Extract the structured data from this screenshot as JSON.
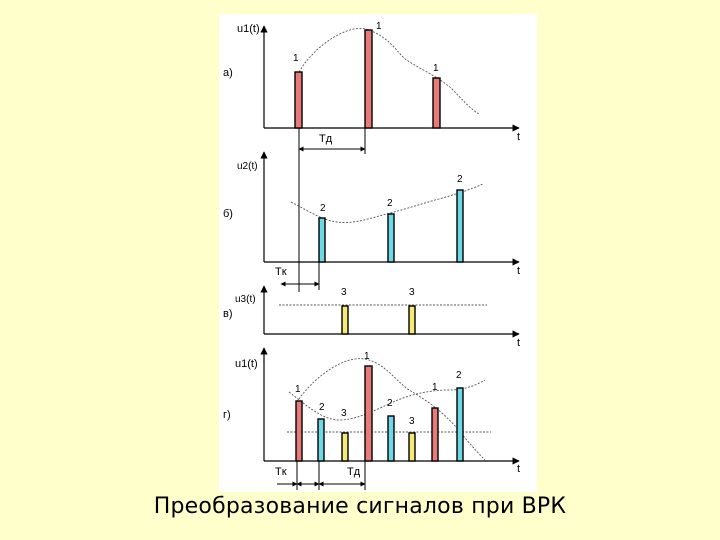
{
  "caption": "Преобразование сигналов при ВРК",
  "colors": {
    "background": "#ffffcc",
    "panel": "#ffffff",
    "pulse_red": "#e87a7a",
    "pulse_cyan": "#6fd8e6",
    "pulse_yellow": "#f5ea78"
  },
  "plots": [
    {
      "id": "a",
      "panel_label": "а)",
      "y_label": "u1(t)",
      "x_label": "t",
      "pulses": [
        {
          "channel": "red",
          "label": "1"
        },
        {
          "channel": "red",
          "label": "1"
        },
        {
          "channel": "red",
          "label": "1"
        }
      ],
      "interval_label": "Tд"
    },
    {
      "id": "b",
      "panel_label": "б)",
      "y_label": "u2(t)",
      "x_label": "t",
      "pulses": [
        {
          "channel": "cyan",
          "label": "2"
        },
        {
          "channel": "cyan",
          "label": "2"
        },
        {
          "channel": "cyan",
          "label": "2"
        }
      ],
      "interval_label": "Tк"
    },
    {
      "id": "c",
      "panel_label": "в)",
      "y_label": "u3(t)",
      "x_label": "t",
      "pulses": [
        {
          "channel": "yellow",
          "label": "3"
        },
        {
          "channel": "yellow",
          "label": "3"
        }
      ]
    },
    {
      "id": "d",
      "panel_label": "г)",
      "y_label": "u1(t)",
      "x_label": "t",
      "pulses": [
        {
          "channel": "red",
          "label": "1"
        },
        {
          "channel": "cyan",
          "label": "2"
        },
        {
          "channel": "yellow",
          "label": "3"
        },
        {
          "channel": "red",
          "label": "1"
        },
        {
          "channel": "cyan",
          "label": "2"
        },
        {
          "channel": "yellow",
          "label": "3"
        },
        {
          "channel": "red",
          "label": "1"
        },
        {
          "channel": "cyan",
          "label": "2"
        }
      ],
      "interval_labels": [
        "Tк",
        "Tд"
      ]
    }
  ]
}
